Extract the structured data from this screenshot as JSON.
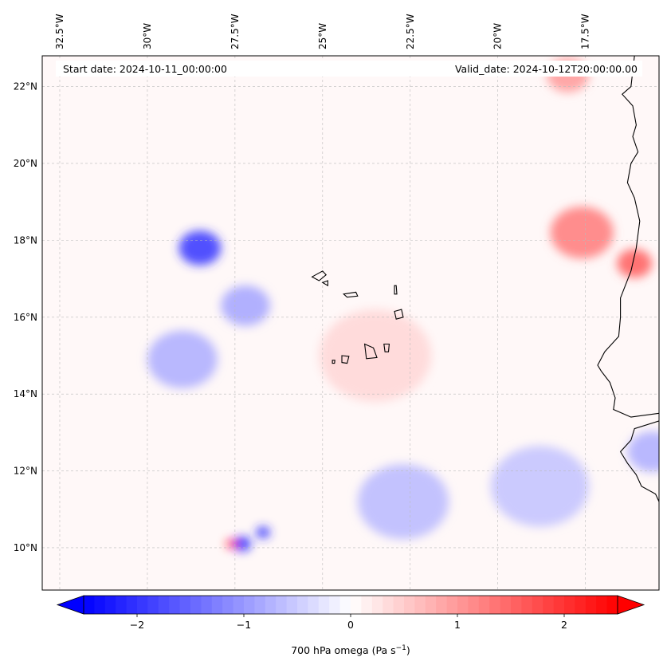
{
  "chart_data": {
    "type": "heatmap",
    "variable_label": "700 hPa omega (Pa s",
    "variable_unit_sup": "−1",
    "variable_label_end": ")",
    "header": {
      "start_date": "Start date: 2024-10-11_00:00:00",
      "valid_date": "Valid_date: 2024-10-12T20:00:00.00"
    },
    "lon_range": [
      -33.0,
      -15.4
    ],
    "lat_range": [
      8.9,
      22.8
    ],
    "lon_ticks": [
      {
        "value": -32.5,
        "label": "32.5°W"
      },
      {
        "value": -30.0,
        "label": "30°W"
      },
      {
        "value": -27.5,
        "label": "27.5°W"
      },
      {
        "value": -25.0,
        "label": "25°W"
      },
      {
        "value": -22.5,
        "label": "22.5°W"
      },
      {
        "value": -20.0,
        "label": "20°W"
      },
      {
        "value": -17.5,
        "label": "17.5°W"
      }
    ],
    "lat_ticks": [
      {
        "value": 10,
        "label": "10°N"
      },
      {
        "value": 12,
        "label": "12°N"
      },
      {
        "value": 14,
        "label": "14°N"
      },
      {
        "value": 16,
        "label": "16°N"
      },
      {
        "value": 18,
        "label": "18°N"
      },
      {
        "value": 20,
        "label": "20°N"
      },
      {
        "value": 22,
        "label": "22°N"
      }
    ],
    "colorbar": {
      "cmap": "bwr",
      "vmin": -2.5,
      "vmax": 2.5,
      "extend": "both",
      "ticks": [
        {
          "value": -2,
          "label": "−2"
        },
        {
          "value": -1,
          "label": "−1"
        },
        {
          "value": 0,
          "label": "0"
        },
        {
          "value": 1,
          "label": "1"
        },
        {
          "value": 2,
          "label": "2"
        }
      ]
    },
    "features": [
      {
        "name": "ascent-cluster-18N",
        "lon": -28.5,
        "lat": 17.8,
        "value": -2.0,
        "spread": 0.6
      },
      {
        "name": "ascent-band-15N",
        "lon": -29.0,
        "lat": 14.9,
        "value": -0.8,
        "spread": 1.0
      },
      {
        "name": "ascent-tail-16N",
        "lon": -27.2,
        "lat": 16.3,
        "value": -0.9,
        "spread": 0.7
      },
      {
        "name": "ascent-core-10N",
        "lon": -27.3,
        "lat": 10.1,
        "value": -2.3,
        "spread": 0.25
      },
      {
        "name": "descent-spot-10N",
        "lon": -27.6,
        "lat": 10.1,
        "value": 2.3,
        "spread": 0.15
      },
      {
        "name": "ascent-spot-10N-east",
        "lon": -26.7,
        "lat": 10.4,
        "value": -2.1,
        "spread": 0.2
      },
      {
        "name": "ascent-region-11N",
        "lon": -22.7,
        "lat": 11.2,
        "value": -0.7,
        "spread": 1.3
      },
      {
        "name": "ascent-region-12N-east",
        "lon": -18.8,
        "lat": 11.6,
        "value": -0.6,
        "spread": 1.4
      },
      {
        "name": "descent-band-18N",
        "lon": -17.6,
        "lat": 18.2,
        "value": 1.3,
        "spread": 0.9
      },
      {
        "name": "descent-core-17N",
        "lon": -16.1,
        "lat": 17.4,
        "value": 1.6,
        "spread": 0.5
      },
      {
        "name": "descent-22N",
        "lon": -18.0,
        "lat": 22.3,
        "value": 1.0,
        "spread": 0.6
      },
      {
        "name": "descent-central-15N",
        "lon": -23.5,
        "lat": 15.0,
        "value": 0.4,
        "spread": 1.6
      },
      {
        "name": "ascent-coast-12N",
        "lon": -15.6,
        "lat": 12.5,
        "value": -0.8,
        "spread": 0.7
      }
    ],
    "islands": [
      {
        "name": "santo-antao",
        "path": [
          [
            -25.3,
            17.05
          ],
          [
            -25.0,
            17.2
          ],
          [
            -24.9,
            17.1
          ],
          [
            -25.1,
            16.95
          ]
        ]
      },
      {
        "name": "sao-vicente",
        "path": [
          [
            -25.0,
            16.9
          ],
          [
            -24.85,
            16.95
          ],
          [
            -24.85,
            16.82
          ]
        ]
      },
      {
        "name": "sao-nicolau",
        "path": [
          [
            -24.4,
            16.6
          ],
          [
            -24.05,
            16.65
          ],
          [
            -24.0,
            16.55
          ],
          [
            -24.3,
            16.52
          ]
        ]
      },
      {
        "name": "sal",
        "path": [
          [
            -22.95,
            16.82
          ],
          [
            -22.9,
            16.82
          ],
          [
            -22.88,
            16.6
          ],
          [
            -22.95,
            16.6
          ]
        ]
      },
      {
        "name": "boa-vista",
        "path": [
          [
            -22.95,
            16.15
          ],
          [
            -22.75,
            16.2
          ],
          [
            -22.7,
            16.0
          ],
          [
            -22.9,
            15.95
          ]
        ]
      },
      {
        "name": "maio",
        "path": [
          [
            -23.25,
            15.3
          ],
          [
            -23.1,
            15.3
          ],
          [
            -23.12,
            15.1
          ],
          [
            -23.22,
            15.1
          ]
        ]
      },
      {
        "name": "santiago",
        "path": [
          [
            -23.8,
            15.3
          ],
          [
            -23.55,
            15.2
          ],
          [
            -23.45,
            14.95
          ],
          [
            -23.75,
            14.92
          ]
        ]
      },
      {
        "name": "fogo",
        "path": [
          [
            -24.45,
            15.0
          ],
          [
            -24.25,
            14.98
          ],
          [
            -24.3,
            14.8
          ],
          [
            -24.45,
            14.82
          ]
        ]
      },
      {
        "name": "brava",
        "path": [
          [
            -24.72,
            14.88
          ],
          [
            -24.65,
            14.88
          ],
          [
            -24.66,
            14.8
          ],
          [
            -24.72,
            14.8
          ]
        ]
      }
    ],
    "coastline": [
      [
        -16.1,
        22.8
      ],
      [
        -16.2,
        22.0
      ],
      [
        -16.45,
        21.8
      ],
      [
        -16.15,
        21.5
      ],
      [
        -16.05,
        21.0
      ],
      [
        -16.15,
        20.7
      ],
      [
        -16.0,
        20.3
      ],
      [
        -16.2,
        20.0
      ],
      [
        -16.3,
        19.5
      ],
      [
        -16.1,
        19.1
      ],
      [
        -15.95,
        18.5
      ],
      [
        -16.05,
        17.8
      ],
      [
        -16.2,
        17.2
      ],
      [
        -16.5,
        16.5
      ],
      [
        -16.5,
        16.0
      ],
      [
        -16.55,
        15.5
      ],
      [
        -16.95,
        15.1
      ],
      [
        -17.15,
        14.75
      ],
      [
        -17.05,
        14.6
      ],
      [
        -16.8,
        14.3
      ],
      [
        -16.65,
        13.9
      ],
      [
        -16.7,
        13.6
      ],
      [
        -16.2,
        13.4
      ],
      [
        -15.4,
        13.5
      ]
    ],
    "coastline_south": [
      [
        -15.4,
        13.3
      ],
      [
        -16.1,
        13.1
      ],
      [
        -16.2,
        12.8
      ],
      [
        -16.5,
        12.5
      ],
      [
        -16.3,
        12.2
      ],
      [
        -16.05,
        11.9
      ],
      [
        -15.9,
        11.6
      ],
      [
        -15.5,
        11.4
      ],
      [
        -15.4,
        11.2
      ]
    ]
  }
}
